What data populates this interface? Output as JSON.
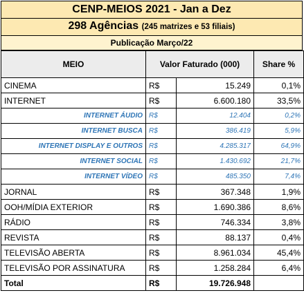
{
  "header": {
    "title": "CENP-MEIOS 2021 - Jan a Dez",
    "agencies": "298 Agências",
    "agencies_note": "(245 matrizes e 53 filiais)",
    "publication": "Publicação Março/22"
  },
  "table": {
    "columns": [
      "MEIO",
      "Valor Faturado (000)",
      "Share %"
    ],
    "rows": [
      {
        "meio": "CINEMA",
        "currency": "R$",
        "value": "15.249",
        "share": "0,1%"
      },
      {
        "meio": "INTERNET",
        "currency": "R$",
        "value": "6.600.180",
        "share": "33,5%",
        "breakdown": [
          {
            "meio": "INTERNET ÁUDIO",
            "currency": "R$",
            "value": "12.404",
            "share": "0,2%"
          },
          {
            "meio": "INTERNET BUSCA",
            "currency": "R$",
            "value": "386.419",
            "share": "5,9%"
          },
          {
            "meio": "INTERNET DISPLAY E OUTROS",
            "currency": "R$",
            "value": "4.285.317",
            "share": "64,9%"
          },
          {
            "meio": "INTERNET SOCIAL",
            "currency": "R$",
            "value": "1.430.692",
            "share": "21,7%"
          },
          {
            "meio": "INTERNET VÍDEO",
            "currency": "R$",
            "value": "485.350",
            "share": "7,4%"
          }
        ]
      },
      {
        "meio": "JORNAL",
        "currency": "R$",
        "value": "367.348",
        "share": "1,9%"
      },
      {
        "meio": "OOH/MÍDIA EXTERIOR",
        "currency": "R$",
        "value": "1.690.386",
        "share": "8,6%"
      },
      {
        "meio": "RÁDIO",
        "currency": "R$",
        "value": "746.334",
        "share": "3,8%"
      },
      {
        "meio": "REVISTA",
        "currency": "R$",
        "value": "88.137",
        "share": "0,4%"
      },
      {
        "meio": "TELEVISÃO ABERTA",
        "currency": "R$",
        "value": "8.961.034",
        "share": "45,4%"
      },
      {
        "meio": "TELEVISÃO POR ASSINATURA",
        "currency": "R$",
        "value": "1.258.284",
        "share": "6,4%"
      }
    ],
    "total": {
      "meio": "Total",
      "currency": "R$",
      "value": "19.726.948"
    }
  }
}
